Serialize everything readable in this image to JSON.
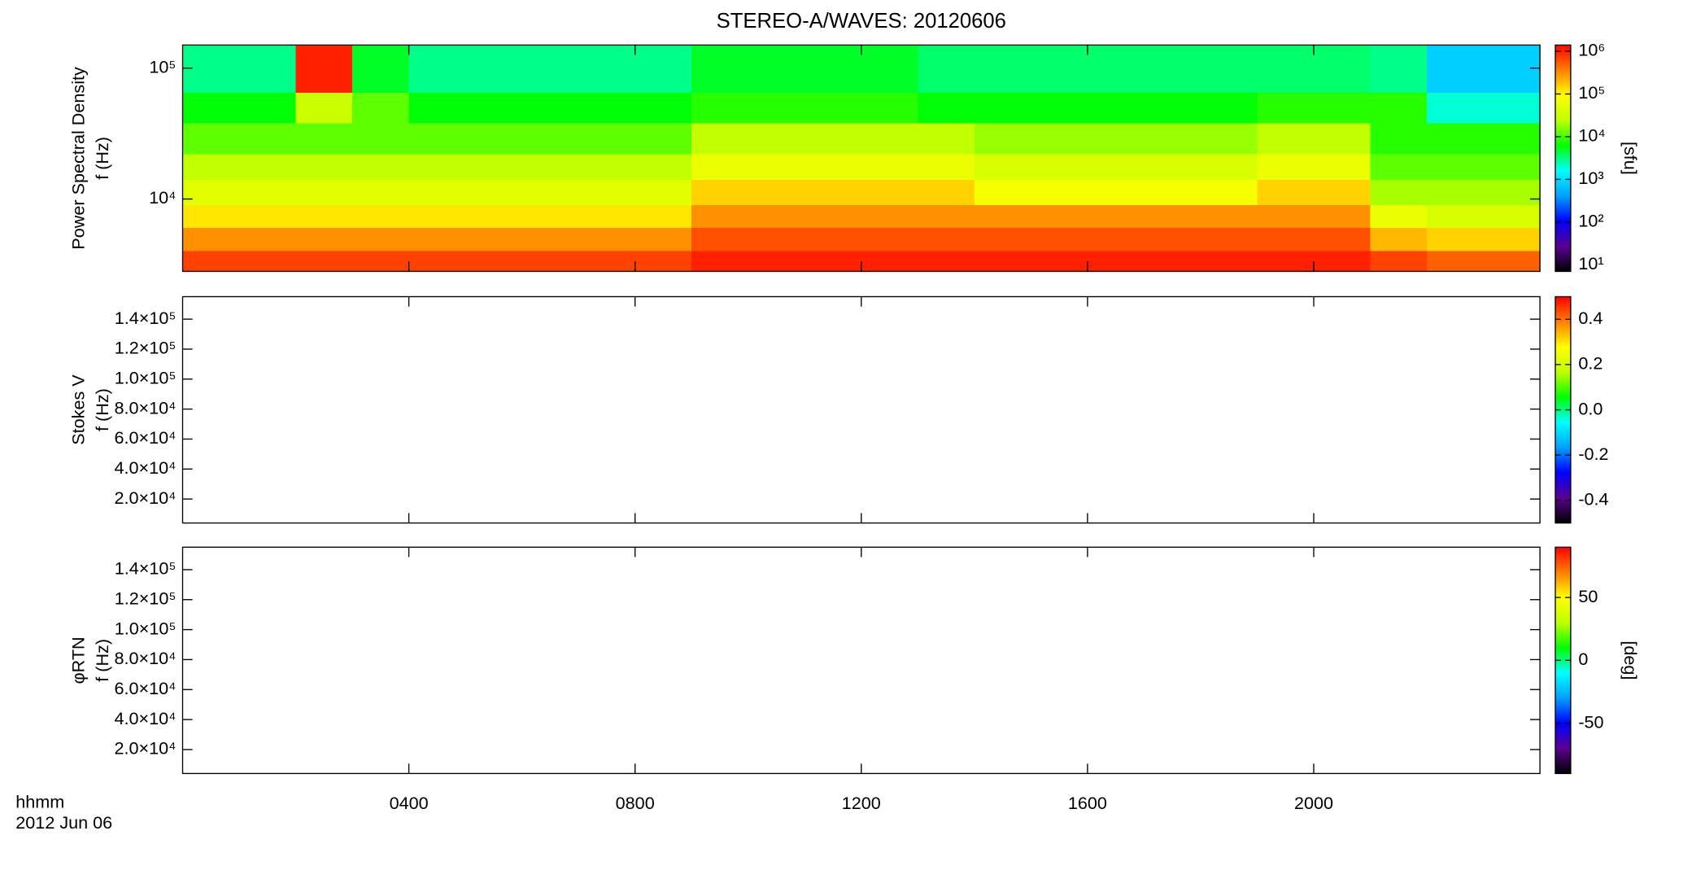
{
  "chart_data": [
    {
      "type": "heatmap",
      "title": "STEREO-A/WAVES: 20120606",
      "ylabel": [
        "Power Spectral Density",
        "f (Hz)"
      ],
      "log_y": true,
      "ylim": [
        2800,
        150000
      ],
      "yticks": [
        {
          "value": 10000,
          "label": "10⁴"
        },
        {
          "value": 100000,
          "label": "10⁵"
        }
      ],
      "x_bins": [
        0,
        1,
        2,
        3,
        4,
        5,
        6,
        7,
        8,
        9,
        10,
        11,
        12,
        13,
        14,
        15,
        16,
        17,
        18,
        19,
        20,
        21,
        22,
        23,
        24
      ],
      "y_bins": [
        2800,
        4000,
        6000,
        9000,
        14000,
        22000,
        38000,
        65000,
        150000
      ],
      "z": [
        [
          700000,
          700000,
          700000,
          700000,
          700000,
          700000,
          700000,
          700000,
          700000,
          1000000,
          1000000,
          1000000,
          1000000,
          1000000,
          1000000,
          1000000,
          1000000,
          1000000,
          1000000,
          1000000,
          1000000,
          700000,
          500000,
          500000
        ],
        [
          300000,
          300000,
          300000,
          300000,
          300000,
          300000,
          300000,
          300000,
          300000,
          600000,
          600000,
          600000,
          600000,
          600000,
          600000,
          600000,
          600000,
          600000,
          600000,
          600000,
          600000,
          200000,
          150000,
          150000
        ],
        [
          120000,
          120000,
          120000,
          120000,
          120000,
          120000,
          120000,
          120000,
          120000,
          300000,
          300000,
          300000,
          300000,
          300000,
          300000,
          300000,
          300000,
          300000,
          300000,
          300000,
          300000,
          60000,
          40000,
          40000
        ],
        [
          50000,
          50000,
          50000,
          50000,
          50000,
          50000,
          50000,
          50000,
          50000,
          150000,
          150000,
          150000,
          150000,
          150000,
          80000,
          80000,
          80000,
          80000,
          80000,
          150000,
          150000,
          20000,
          20000,
          20000
        ],
        [
          25000,
          25000,
          25000,
          25000,
          25000,
          25000,
          25000,
          25000,
          25000,
          60000,
          60000,
          60000,
          60000,
          60000,
          40000,
          40000,
          40000,
          40000,
          40000,
          60000,
          60000,
          12000,
          12000,
          12000
        ],
        [
          12000,
          12000,
          12000,
          12000,
          12000,
          12000,
          12000,
          12000,
          12000,
          25000,
          25000,
          25000,
          25000,
          25000,
          18000,
          18000,
          18000,
          18000,
          18000,
          25000,
          25000,
          8000,
          8000,
          8000
        ],
        [
          6000,
          6000,
          30000,
          12000,
          6000,
          6000,
          6000,
          6000,
          6000,
          8000,
          8000,
          8000,
          8000,
          6000,
          6000,
          6000,
          6000,
          6000,
          6000,
          8000,
          8000,
          8000,
          2000,
          2000
        ],
        [
          3000,
          3000,
          1000000,
          5000,
          3000,
          3000,
          3000,
          3000,
          3000,
          5000,
          5000,
          5000,
          5000,
          3500,
          3500,
          3500,
          3500,
          3500,
          3500,
          3500,
          3500,
          3000,
          800,
          800
        ]
      ],
      "colormap": [
        "#000000",
        "#5a0090",
        "#0000ff",
        "#00a0ff",
        "#00ffff",
        "#00ff00",
        "#c0ff00",
        "#ffff00",
        "#ff8000",
        "#ff0000"
      ],
      "colorbar": {
        "label": "[sfu]",
        "log": true,
        "lim": [
          7,
          1400000
        ],
        "ticks": [
          {
            "value": 10,
            "label": "10¹"
          },
          {
            "value": 100,
            "label": "10²"
          },
          {
            "value": 1000,
            "label": "10³"
          },
          {
            "value": 10000,
            "label": "10⁴"
          },
          {
            "value": 100000,
            "label": "10⁵"
          },
          {
            "value": 1000000,
            "label": "10⁶"
          }
        ]
      }
    },
    {
      "type": "heatmap",
      "ylabel": [
        "Stokes V",
        "f (Hz)"
      ],
      "log_y": false,
      "ylim": [
        4000,
        155000
      ],
      "yticks": [
        {
          "value": 20000,
          "label": "2.0×10⁴"
        },
        {
          "value": 40000,
          "label": "4.0×10⁴"
        },
        {
          "value": 60000,
          "label": "6.0×10⁴"
        },
        {
          "value": 80000,
          "label": "8.0×10⁴"
        },
        {
          "value": 100000,
          "label": "1.0×10⁵"
        },
        {
          "value": 120000,
          "label": "1.2×10⁵"
        },
        {
          "value": 140000,
          "label": "1.4×10⁵"
        }
      ],
      "colorbar": {
        "log": false,
        "lim": [
          -0.5,
          0.5
        ],
        "ticks": [
          -0.4,
          -0.2,
          {
            "value": 0,
            "label": "0.0"
          },
          0.2,
          0.4
        ]
      }
    },
    {
      "type": "heatmap",
      "ylabel": [
        "φRTN",
        "f (Hz)"
      ],
      "log_y": false,
      "ylim": [
        4000,
        155000
      ],
      "yticks": [
        {
          "value": 20000,
          "label": "2.0×10⁴"
        },
        {
          "value": 40000,
          "label": "4.0×10⁴"
        },
        {
          "value": 60000,
          "label": "6.0×10⁴"
        },
        {
          "value": 80000,
          "label": "8.0×10⁴"
        },
        {
          "value": 100000,
          "label": "1.0×10⁵"
        },
        {
          "value": 120000,
          "label": "1.2×10⁵"
        },
        {
          "value": 140000,
          "label": "1.4×10⁵"
        }
      ],
      "colorbar": {
        "label": "[deg]",
        "log": false,
        "lim": [
          -90,
          90
        ],
        "ticks": [
          -50,
          0,
          50
        ]
      },
      "xlim": [
        0,
        24
      ],
      "xticks": [
        {
          "value": 4,
          "label": "0400"
        },
        {
          "value": 8,
          "label": "0800"
        },
        {
          "value": 12,
          "label": "1200"
        },
        {
          "value": 16,
          "label": "1600"
        },
        {
          "value": 20,
          "label": "2000"
        }
      ],
      "xlabel": [
        "hhmm",
        "2012 Jun 06"
      ]
    }
  ]
}
